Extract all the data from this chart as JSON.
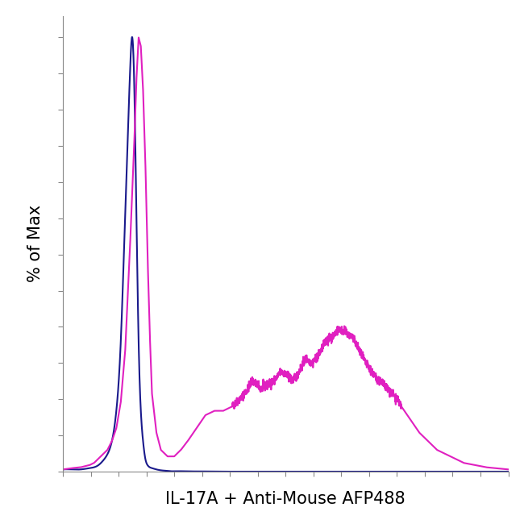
{
  "xlabel": "IL-17A + Anti-Mouse AFP488",
  "ylabel": "% of Max",
  "blue_color": "#1a1a8c",
  "pink_color": "#e020c0",
  "background_color": "#ffffff",
  "xlabel_fontsize": 15,
  "ylabel_fontsize": 15,
  "line_width": 1.5,
  "xlim": [
    0,
    1000
  ],
  "ylim": [
    0,
    105
  ],
  "tick_color": "#888888",
  "spine_color": "#888888",
  "blue_x": [
    0,
    20,
    40,
    60,
    70,
    80,
    90,
    100,
    110,
    120,
    130,
    140,
    150,
    155,
    160,
    165,
    170,
    175,
    180,
    185,
    190,
    195,
    200,
    210,
    220,
    230,
    240,
    260,
    280,
    300,
    350,
    400,
    500,
    600,
    700,
    800,
    900,
    1000
  ],
  "blue_y": [
    0.5,
    0.5,
    0.5,
    0.8,
    1.0,
    1.5,
    2.5,
    4,
    7,
    14,
    30,
    60,
    90,
    100,
    90,
    60,
    30,
    14,
    7,
    3,
    1.5,
    1.0,
    0.8,
    0.5,
    0.3,
    0.2,
    0.1,
    0.1,
    0.05,
    0.05,
    0,
    0,
    0,
    0,
    0,
    0,
    0,
    0
  ],
  "pink_x": [
    0,
    20,
    40,
    60,
    70,
    80,
    90,
    100,
    110,
    120,
    130,
    140,
    150,
    160,
    165,
    170,
    175,
    180,
    185,
    190,
    195,
    200,
    210,
    220,
    235,
    250,
    265,
    280,
    300,
    320,
    340,
    360,
    380,
    390,
    400,
    415,
    425,
    435,
    445,
    460,
    475,
    490,
    505,
    515,
    525,
    535,
    545,
    560,
    575,
    590,
    605,
    620,
    635,
    650,
    665,
    680,
    700,
    720,
    740,
    760,
    780,
    800,
    820,
    840,
    860,
    880,
    900,
    950,
    1000
  ],
  "pink_y": [
    0.5,
    0.8,
    1.0,
    1.5,
    2.0,
    3.0,
    4.0,
    5.0,
    7,
    10,
    16,
    28,
    50,
    75,
    90,
    100,
    98,
    88,
    72,
    50,
    32,
    18,
    9,
    5,
    3.5,
    3.5,
    5,
    7,
    10,
    13,
    14,
    14,
    15,
    16,
    17,
    19,
    21,
    20,
    19,
    20,
    21,
    23,
    22,
    21,
    22,
    24,
    26,
    25,
    27,
    30,
    31,
    33,
    32,
    31,
    28,
    25,
    22,
    20,
    18,
    15,
    12,
    9,
    7,
    5,
    4,
    3,
    2,
    1,
    0.5
  ]
}
